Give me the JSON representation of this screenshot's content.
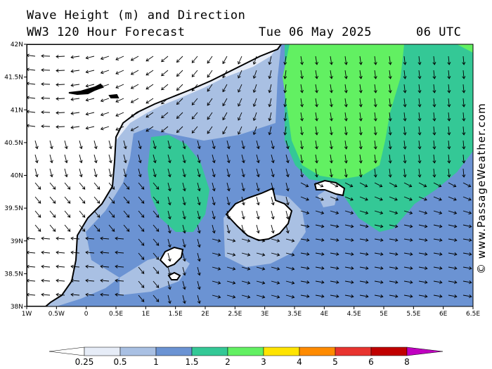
{
  "header": {
    "title": "Wave Height (m) and Direction",
    "subtitle": "WW3 120 Hour Forecast",
    "date": "Tue 06 May 2025",
    "time": "06 UTC"
  },
  "credit": "© www.PassageWeather.com",
  "map": {
    "lon_ticks": [
      "1W",
      "0.5W",
      "0",
      "0.5E",
      "1E",
      "1.5E",
      "2E",
      "2.5E",
      "3E",
      "3.5E",
      "4E",
      "4.5E",
      "5E",
      "5.5E",
      "6E",
      "6.5E"
    ],
    "lat_ticks": [
      "42N",
      "41.5N",
      "41N",
      "40.5N",
      "40N",
      "39.5N",
      "39N",
      "38.5N",
      "38N"
    ],
    "lon_range": [
      -1,
      6.5
    ],
    "lat_range": [
      38,
      42
    ]
  },
  "legend": {
    "labels": [
      "0.25",
      "0.5",
      "1",
      "1.5",
      "2",
      "3",
      "4",
      "5",
      "6",
      "8"
    ],
    "colors": [
      "#e6ecf7",
      "#a9c0e3",
      "#6b93d3",
      "#34c896",
      "#62f062",
      "#ffe400",
      "#ff8b00",
      "#e8342f",
      "#c00000",
      "#c000c0"
    ]
  },
  "colors": {
    "land": "#ffffff",
    "very_low": "#e6ecf7",
    "low": "#a9c0e3",
    "mid": "#6b93d3",
    "high": "#34c896",
    "higher": "#62f062"
  }
}
